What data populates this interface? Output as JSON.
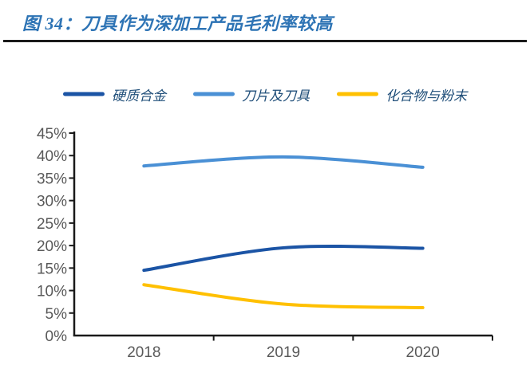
{
  "figure": {
    "title": "图 34：刀具作为深加工产品毛利率较高"
  },
  "chart_data": {
    "type": "line",
    "categories": [
      "2018",
      "2019",
      "2020"
    ],
    "series": [
      {
        "name": "硬质合金",
        "values": [
          14.5,
          19.5,
          19.4
        ],
        "color": "#1B54A5"
      },
      {
        "name": "刀片及刀具",
        "values": [
          37.7,
          39.7,
          37.4
        ],
        "color": "#4A90D5"
      },
      {
        "name": "化合物与粉末",
        "values": [
          11.3,
          7.0,
          6.2
        ],
        "color": "#FFC000"
      }
    ],
    "yticks": [
      "0%",
      "5%",
      "10%",
      "15%",
      "20%",
      "25%",
      "30%",
      "35%",
      "40%",
      "45%"
    ],
    "ylim": [
      0,
      45
    ],
    "ytick_step": 5,
    "unit": "percent",
    "smooth": true,
    "grid": false,
    "legend_position": "top",
    "title": "",
    "xlabel": "",
    "ylabel": ""
  },
  "style": {
    "title_color": "#2E74B5",
    "rule_color": "#1A1A1A",
    "axis_color": "#1A1A1A",
    "tick_label_color": "#595959",
    "legend_text_color": "#1F4E79"
  }
}
